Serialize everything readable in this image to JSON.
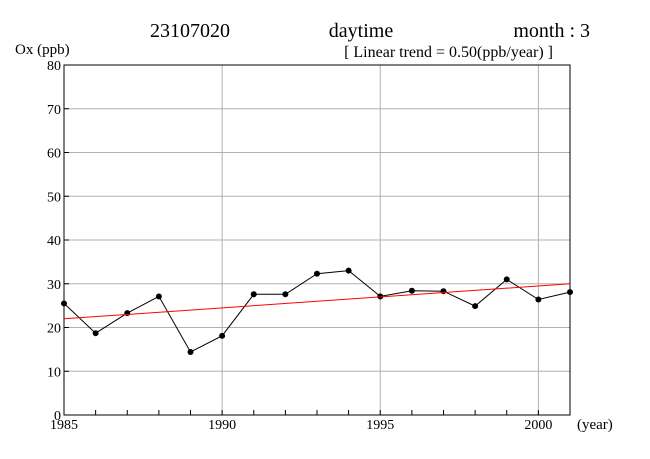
{
  "header": {
    "station_id": "23107020",
    "period": "daytime",
    "month_label": "month : 3",
    "trend_label": "[ Linear trend = 0.50(ppb/year) ]"
  },
  "chart_data": {
    "type": "line",
    "ylabel": "Ox (ppb)",
    "xlabel": "(year)",
    "xlim": [
      1985,
      2001
    ],
    "ylim": [
      0,
      80
    ],
    "x_ticks": [
      1985,
      1990,
      1995,
      2000
    ],
    "x_tick_labels": [
      "1985",
      "1990",
      "1995",
      "2000"
    ],
    "y_ticks": [
      0,
      10,
      20,
      30,
      40,
      50,
      60,
      70,
      80
    ],
    "y_tick_labels": [
      "0",
      "10",
      "20",
      "30",
      "40",
      "50",
      "60",
      "70",
      "80"
    ],
    "grid": true,
    "series": [
      {
        "color": "#000000",
        "x": [
          1985,
          1986,
          1987,
          1988,
          1989,
          1990,
          1991,
          1992,
          1993,
          1994,
          1995,
          1996,
          1997,
          1998,
          1999,
          2000,
          2001
        ],
        "values": [
          25.5,
          18.7,
          23.3,
          27.1,
          14.4,
          18.1,
          27.6,
          27.6,
          32.3,
          33.0,
          27.1,
          28.4,
          28.3,
          24.9,
          31.0,
          26.4,
          28.1
        ]
      },
      {
        "color": "#ff0000",
        "x": [
          1985,
          2001
        ],
        "values": [
          22.0,
          30.0
        ]
      }
    ]
  }
}
